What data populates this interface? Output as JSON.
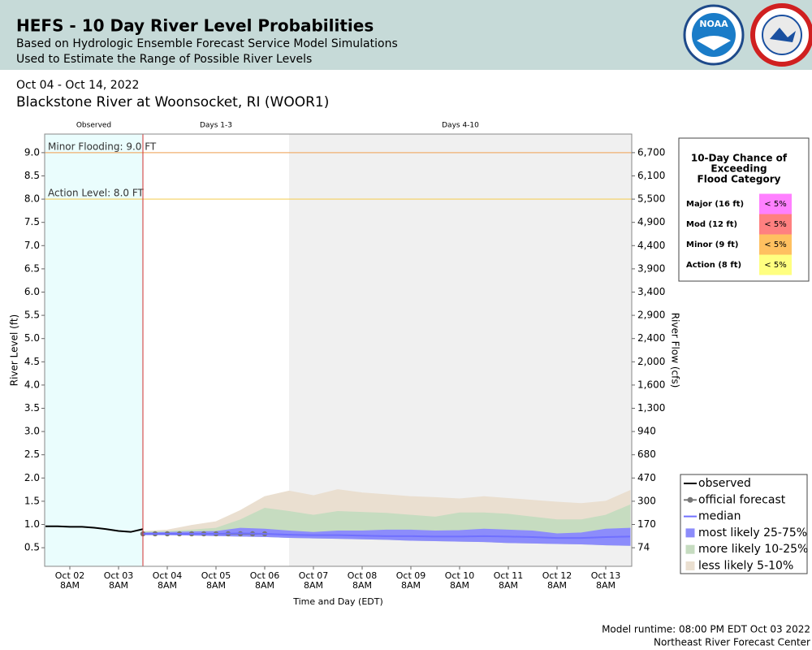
{
  "header": {
    "title": "HEFS - 10 Day River Level Probabilities",
    "subtitle": [
      "Based on Hydrologic Ensemble Forecast Service Model Simulations",
      "Used to Estimate the Range of Possible River Levels"
    ],
    "logo": "NOAA",
    "date_range": "Oct 04 - Oct 14, 2022",
    "location": "Blackstone River at Woonsocket, RI (WOOR1)"
  },
  "chart_data": {
    "type": "line",
    "ylabel": "River Level (ft)",
    "y2label": "River Flow (cfs)",
    "xlabel": "Time and Day (EDT)",
    "xlim": [
      "2022-10-01T19:36",
      "2022-10-13T20:48"
    ],
    "ylim": [
      0.1,
      9.4
    ],
    "yticks": [
      0.5,
      {
        "value": 1,
        "label": "1.0"
      },
      1.5,
      {
        "value": 2,
        "label": "2.0"
      },
      2.5,
      {
        "value": 3,
        "label": "3.0"
      },
      3.5,
      {
        "value": 4,
        "label": "4.0"
      },
      4.5,
      {
        "value": 5,
        "label": "5.0"
      },
      5.5,
      {
        "value": 6,
        "label": "6.0"
      },
      6.5,
      {
        "value": 7,
        "label": "7.0"
      },
      7.5,
      {
        "value": 8,
        "label": "8.0"
      },
      8.5,
      {
        "value": 9,
        "label": "9.0"
      }
    ],
    "y2ticks": [
      74,
      170,
      300,
      470,
      680,
      940,
      {
        "value": 1300,
        "label": "1,300"
      },
      {
        "value": 1600,
        "label": "1,600"
      },
      {
        "value": 2000,
        "label": "2,000"
      },
      {
        "value": 2400,
        "label": "2,400"
      },
      {
        "value": 2900,
        "label": "2,900"
      },
      {
        "value": 3400,
        "label": "3,400"
      },
      {
        "value": 3900,
        "label": "3,900"
      },
      {
        "value": 4400,
        "label": "4,400"
      },
      {
        "value": 4900,
        "label": "4,900"
      },
      {
        "value": 5500,
        "label": "5,500"
      },
      {
        "value": 6100,
        "label": "6,100"
      },
      {
        "value": 6700,
        "label": "6,700"
      }
    ],
    "xticks": [
      {
        "value": "2022-10-02T08:00",
        "label": [
          "Oct 02",
          "8AM"
        ]
      },
      {
        "value": "2022-10-03T08:00",
        "label": [
          "Oct 03",
          "8AM"
        ]
      },
      {
        "value": "2022-10-04T08:00",
        "label": [
          "Oct 04",
          "8AM"
        ]
      },
      {
        "value": "2022-10-05T08:00",
        "label": [
          "Oct 05",
          "8AM"
        ]
      },
      {
        "value": "2022-10-06T08:00",
        "label": [
          "Oct 06",
          "8AM"
        ]
      },
      {
        "value": "2022-10-07T08:00",
        "label": [
          "Oct 07",
          "8AM"
        ]
      },
      {
        "value": "2022-10-08T08:00",
        "label": [
          "Oct 08",
          "8AM"
        ]
      },
      {
        "value": "2022-10-09T08:00",
        "label": [
          "Oct 09",
          "8AM"
        ]
      },
      {
        "value": "2022-10-10T08:00",
        "label": [
          "Oct 10",
          "8AM"
        ]
      },
      {
        "value": "2022-10-11T08:00",
        "label": [
          "Oct 11",
          "8AM"
        ]
      },
      {
        "value": "2022-10-12T08:00",
        "label": [
          "Oct 12",
          "8AM"
        ]
      },
      {
        "value": "2022-10-13T08:00",
        "label": [
          "Oct 13",
          "8AM"
        ]
      }
    ],
    "periods": [
      {
        "label": "Observed",
        "start": "2022-10-01T19:36",
        "end": "2022-10-03T20:00",
        "color": "#eafdfd"
      },
      {
        "label": "Days 1-3",
        "start": "2022-10-03T20:00",
        "end": "2022-10-06T20:00",
        "color": "#ffffff"
      },
      {
        "label": "Days 4-10",
        "start": "2022-10-06T20:00",
        "end": "2022-10-13T20:48",
        "color": "#f0f0f0"
      }
    ],
    "forecast_start": "2022-10-03T20:00",
    "thresholds": [
      {
        "label": "Minor Flooding: 9.0 FT",
        "value": 9.0,
        "color": "#f0b070"
      },
      {
        "label": "Action Level: 8.0 FT",
        "value": 8.0,
        "color": "#f4d060"
      }
    ],
    "series": [
      {
        "name": "observed",
        "color": "#000000",
        "kind": "line",
        "x": [
          "2022-10-01T20:00",
          "2022-10-02T02:00",
          "2022-10-02T08:00",
          "2022-10-02T14:00",
          "2022-10-02T20:00",
          "2022-10-03T02:00",
          "2022-10-03T08:00",
          "2022-10-03T14:00",
          "2022-10-03T20:00"
        ],
        "values": [
          0.96,
          0.96,
          0.95,
          0.95,
          0.93,
          0.9,
          0.86,
          0.84,
          0.9
        ]
      },
      {
        "name": "official forecast",
        "color": "#777777",
        "kind": "points",
        "x": [
          "2022-10-03T20:00",
          "2022-10-04T02:00",
          "2022-10-04T08:00",
          "2022-10-04T14:00",
          "2022-10-04T20:00",
          "2022-10-05T02:00",
          "2022-10-05T08:00",
          "2022-10-05T14:00",
          "2022-10-05T20:00",
          "2022-10-06T02:00",
          "2022-10-06T08:00"
        ],
        "values": [
          0.8,
          0.8,
          0.8,
          0.8,
          0.8,
          0.8,
          0.8,
          0.8,
          0.8,
          0.8,
          0.8
        ]
      },
      {
        "name": "median",
        "color": "#7070ff",
        "kind": "line",
        "x": [
          "2022-10-03T20:00",
          "2022-10-04T08:00",
          "2022-10-04T20:00",
          "2022-10-05T08:00",
          "2022-10-05T20:00",
          "2022-10-06T08:00",
          "2022-10-06T20:00",
          "2022-10-07T08:00",
          "2022-10-07T20:00",
          "2022-10-08T08:00",
          "2022-10-08T20:00",
          "2022-10-09T08:00",
          "2022-10-09T20:00",
          "2022-10-10T08:00",
          "2022-10-10T20:00",
          "2022-10-11T08:00",
          "2022-10-11T20:00",
          "2022-10-12T08:00",
          "2022-10-12T20:00",
          "2022-10-13T08:00",
          "2022-10-13T20:00"
        ],
        "values": [
          0.8,
          0.8,
          0.8,
          0.8,
          0.81,
          0.8,
          0.78,
          0.77,
          0.77,
          0.76,
          0.75,
          0.75,
          0.74,
          0.74,
          0.75,
          0.74,
          0.73,
          0.71,
          0.71,
          0.73,
          0.74
        ]
      },
      {
        "name": "most likely 25-75%",
        "color": "#8c8cfb",
        "kind": "band",
        "x": [
          "2022-10-03T20:00",
          "2022-10-04T08:00",
          "2022-10-04T20:00",
          "2022-10-05T08:00",
          "2022-10-05T20:00",
          "2022-10-06T08:00",
          "2022-10-06T20:00",
          "2022-10-07T08:00",
          "2022-10-07T20:00",
          "2022-10-08T08:00",
          "2022-10-08T20:00",
          "2022-10-09T08:00",
          "2022-10-09T20:00",
          "2022-10-10T08:00",
          "2022-10-10T20:00",
          "2022-10-11T08:00",
          "2022-10-11T20:00",
          "2022-10-12T08:00",
          "2022-10-12T20:00",
          "2022-10-13T08:00",
          "2022-10-13T20:00"
        ],
        "values": [
          0.82,
          0.83,
          0.84,
          0.85,
          0.92,
          0.9,
          0.86,
          0.83,
          0.86,
          0.86,
          0.88,
          0.88,
          0.86,
          0.87,
          0.9,
          0.88,
          0.86,
          0.8,
          0.82,
          0.9,
          0.92
        ],
        "lower": [
          0.78,
          0.78,
          0.77,
          0.76,
          0.75,
          0.74,
          0.72,
          0.71,
          0.7,
          0.69,
          0.68,
          0.66,
          0.65,
          0.64,
          0.63,
          0.61,
          0.6,
          0.59,
          0.58,
          0.56,
          0.55
        ]
      },
      {
        "name": "more likely 10-25%",
        "color": "#c6dcc0",
        "kind": "band",
        "x": [
          "2022-10-03T20:00",
          "2022-10-04T08:00",
          "2022-10-04T20:00",
          "2022-10-05T08:00",
          "2022-10-05T20:00",
          "2022-10-06T08:00",
          "2022-10-06T20:00",
          "2022-10-07T08:00",
          "2022-10-07T20:00",
          "2022-10-08T08:00",
          "2022-10-08T20:00",
          "2022-10-09T08:00",
          "2022-10-09T20:00",
          "2022-10-10T08:00",
          "2022-10-10T20:00",
          "2022-10-11T08:00",
          "2022-10-11T20:00",
          "2022-10-12T08:00",
          "2022-10-12T20:00",
          "2022-10-13T08:00",
          "2022-10-13T20:00"
        ],
        "values": [
          0.84,
          0.85,
          0.88,
          0.92,
          1.1,
          1.35,
          1.28,
          1.2,
          1.28,
          1.26,
          1.24,
          1.2,
          1.16,
          1.25,
          1.25,
          1.22,
          1.16,
          1.1,
          1.1,
          1.2,
          1.42
        ]
      },
      {
        "name": "less likely 5-10%",
        "color": "#eadfd0",
        "kind": "band",
        "x": [
          "2022-10-03T20:00",
          "2022-10-04T08:00",
          "2022-10-04T20:00",
          "2022-10-05T08:00",
          "2022-10-05T20:00",
          "2022-10-06T08:00",
          "2022-10-06T20:00",
          "2022-10-07T08:00",
          "2022-10-07T20:00",
          "2022-10-08T08:00",
          "2022-10-08T20:00",
          "2022-10-09T08:00",
          "2022-10-09T20:00",
          "2022-10-10T08:00",
          "2022-10-10T20:00",
          "2022-10-11T08:00",
          "2022-10-11T20:00",
          "2022-10-12T08:00",
          "2022-10-12T20:00",
          "2022-10-13T08:00",
          "2022-10-13T20:00"
        ],
        "values": [
          0.85,
          0.88,
          0.98,
          1.06,
          1.3,
          1.6,
          1.72,
          1.62,
          1.75,
          1.68,
          1.64,
          1.6,
          1.58,
          1.55,
          1.6,
          1.56,
          1.52,
          1.48,
          1.45,
          1.5,
          1.73
        ]
      }
    ]
  },
  "flood_table": {
    "title": [
      "10-Day Chance of",
      "Exceeding",
      "Flood Category"
    ],
    "rows": [
      {
        "label": "Major (16 ft)",
        "value_label": "< 5%",
        "color": "#ff80ff"
      },
      {
        "label": "Mod (12 ft)",
        "value_label": "< 5%",
        "color": "#ff8080"
      },
      {
        "label": "Minor (9 ft)",
        "value_label": "< 5%",
        "color": "#ffc060"
      },
      {
        "label": "Action (8 ft)",
        "value_label": "< 5%",
        "color": "#ffff80"
      }
    ]
  },
  "footer": [
    "Model runtime: 08:00 PM EDT Oct 03 2022",
    "Northeast River Forecast Center"
  ]
}
